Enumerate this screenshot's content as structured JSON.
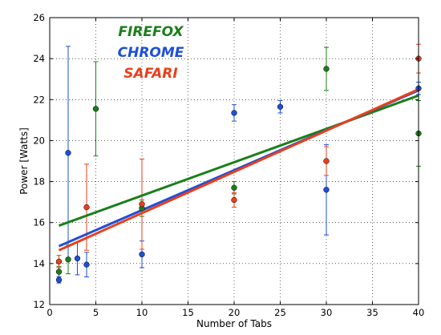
{
  "chart_data": {
    "type": "scatter",
    "xlabel": "Number of Tabs",
    "ylabel": "Power [Watts]",
    "xlim": [
      0,
      40
    ],
    "ylim": [
      12,
      26
    ],
    "xticks": [
      0,
      5,
      10,
      15,
      20,
      25,
      30,
      35,
      40
    ],
    "yticks": [
      12,
      14,
      16,
      18,
      20,
      22,
      24,
      26
    ],
    "grid": true,
    "legend_position": "top-left",
    "series": [
      {
        "name": "FIREFOX",
        "color": "#1a7f1a",
        "points": [
          {
            "x": 1,
            "y": 13.6,
            "err": 0.25
          },
          {
            "x": 2,
            "y": 14.2,
            "err": 0.7
          },
          {
            "x": 5,
            "y": 21.55,
            "err": 2.3
          },
          {
            "x": 10,
            "y": 16.7,
            "err": 0.4
          },
          {
            "x": 20,
            "y": 17.7,
            "err": 0.3
          },
          {
            "x": 30,
            "y": 23.5,
            "err": 1.05
          },
          {
            "x": 40,
            "y": 20.35,
            "err": 1.6
          }
        ],
        "fit": {
          "y_at_1": 15.85,
          "y_at_40": 22.2
        }
      },
      {
        "name": "CHROME",
        "color": "#1f4fd8",
        "points": [
          {
            "x": 1,
            "y": 13.2,
            "err": 0.15
          },
          {
            "x": 2,
            "y": 19.4,
            "err": 5.2
          },
          {
            "x": 3,
            "y": 14.25,
            "err": 0.8
          },
          {
            "x": 4,
            "y": 13.95,
            "err": 0.6
          },
          {
            "x": 10,
            "y": 14.45,
            "err": 0.65
          },
          {
            "x": 20,
            "y": 21.35,
            "err": 0.4
          },
          {
            "x": 25,
            "y": 21.65,
            "err": 0.3
          },
          {
            "x": 30,
            "y": 17.6,
            "err": 2.2
          },
          {
            "x": 40,
            "y": 22.55,
            "err": 0.3
          }
        ],
        "fit": {
          "y_at_1": 14.85,
          "y_at_40": 22.45
        }
      },
      {
        "name": "SAFARI",
        "color": "#e8401c",
        "points": [
          {
            "x": 1,
            "y": 14.1,
            "err": 0.3
          },
          {
            "x": 4,
            "y": 16.75,
            "err": 2.1
          },
          {
            "x": 10,
            "y": 16.9,
            "err": 2.2
          },
          {
            "x": 20,
            "y": 17.1,
            "err": 0.35
          },
          {
            "x": 30,
            "y": 19.0,
            "err": 0.7
          },
          {
            "x": 40,
            "y": 24.0,
            "err": 0.7
          }
        ],
        "fit": {
          "y_at_1": 14.65,
          "y_at_40": 22.5
        }
      }
    ]
  }
}
